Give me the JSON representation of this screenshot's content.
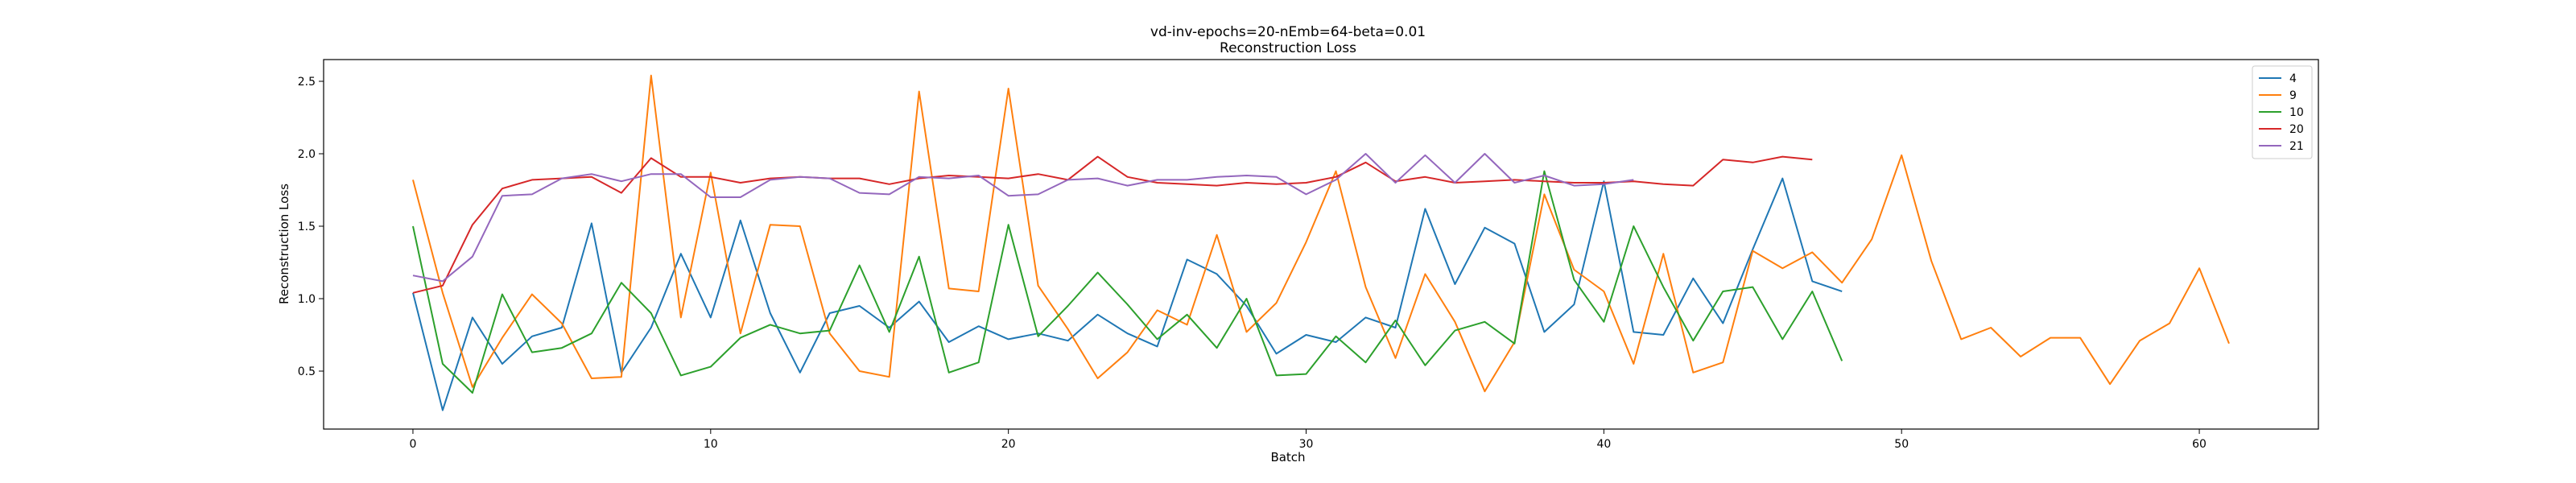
{
  "chart_data": {
    "type": "line",
    "title": "vd-inv-epochs=20-nEmb=64-beta=0.01",
    "subtitle": "Reconstruction Loss",
    "xlabel": "Batch",
    "ylabel": "Reconstruction Loss",
    "xlim": [
      -3,
      64
    ],
    "ylim": [
      0.1,
      2.65
    ],
    "xticks": [
      0,
      10,
      20,
      30,
      40,
      50,
      60
    ],
    "yticks": [
      0.5,
      1.0,
      1.5,
      2.0,
      2.5
    ],
    "ytick_labels": [
      "0.5",
      "1.0",
      "1.5",
      "2.0",
      "2.5"
    ],
    "grid": false,
    "legend_position": "top-right",
    "series": [
      {
        "name": "4",
        "color": "#1f77b4",
        "values": [
          1.04,
          0.23,
          0.87,
          0.55,
          0.74,
          0.8,
          1.52,
          0.49,
          0.8,
          1.31,
          0.87,
          1.54,
          0.9,
          0.49,
          0.9,
          0.95,
          0.8,
          0.98,
          0.7,
          0.81,
          0.72,
          0.76,
          0.71,
          0.89,
          0.76,
          0.67,
          1.27,
          1.17,
          0.95,
          0.62,
          0.75,
          0.7,
          0.87,
          0.8,
          1.62,
          1.1,
          1.49,
          1.38,
          0.77,
          0.96,
          1.81,
          0.77,
          0.75,
          1.14,
          0.83,
          1.34,
          1.83,
          1.12,
          1.05
        ]
      },
      {
        "name": "9",
        "color": "#ff7f0e",
        "values": [
          1.82,
          1.04,
          0.39,
          0.73,
          1.03,
          0.83,
          0.45,
          0.46,
          2.54,
          0.87,
          1.87,
          0.76,
          1.51,
          1.5,
          0.76,
          0.5,
          0.46,
          2.43,
          1.07,
          1.05,
          2.45,
          1.09,
          0.79,
          0.45,
          0.63,
          0.92,
          0.82,
          1.44,
          0.77,
          0.97,
          1.39,
          1.88,
          1.08,
          0.59,
          1.17,
          0.84,
          0.36,
          0.7,
          1.72,
          1.2,
          1.05,
          0.55,
          1.31,
          0.49,
          0.56,
          1.33,
          1.21,
          1.32,
          1.11,
          1.41,
          1.99,
          1.26,
          0.72,
          0.8,
          0.6,
          0.73,
          0.73,
          0.41,
          0.71,
          0.83,
          1.21,
          0.69
        ]
      },
      {
        "name": "10",
        "color": "#2ca02c",
        "values": [
          1.5,
          0.55,
          0.35,
          1.03,
          0.63,
          0.66,
          0.76,
          1.11,
          0.9,
          0.47,
          0.53,
          0.73,
          0.82,
          0.76,
          0.78,
          1.23,
          0.77,
          1.29,
          0.49,
          0.56,
          1.51,
          0.74,
          0.95,
          1.18,
          0.96,
          0.72,
          0.89,
          0.66,
          1.0,
          0.47,
          0.48,
          0.74,
          0.56,
          0.85,
          0.54,
          0.78,
          0.84,
          0.69,
          1.88,
          1.13,
          0.84,
          1.5,
          1.08,
          0.71,
          1.05,
          1.08,
          0.72,
          1.05,
          0.57
        ]
      },
      {
        "name": "20",
        "color": "#d62728",
        "values": [
          1.04,
          1.09,
          1.51,
          1.76,
          1.82,
          1.83,
          1.84,
          1.73,
          1.97,
          1.84,
          1.84,
          1.8,
          1.83,
          1.84,
          1.83,
          1.83,
          1.79,
          1.83,
          1.85,
          1.84,
          1.83,
          1.86,
          1.82,
          1.98,
          1.84,
          1.8,
          1.79,
          1.78,
          1.8,
          1.79,
          1.8,
          1.84,
          1.94,
          1.81,
          1.84,
          1.8,
          1.81,
          1.82,
          1.81,
          1.8,
          1.8,
          1.81,
          1.79,
          1.78,
          1.96,
          1.94,
          1.98,
          1.96
        ]
      },
      {
        "name": "21",
        "color": "#9467bd",
        "values": [
          1.16,
          1.12,
          1.29,
          1.71,
          1.72,
          1.83,
          1.86,
          1.81,
          1.86,
          1.86,
          1.7,
          1.7,
          1.82,
          1.84,
          1.83,
          1.73,
          1.72,
          1.84,
          1.83,
          1.85,
          1.71,
          1.72,
          1.82,
          1.83,
          1.78,
          1.82,
          1.82,
          1.84,
          1.85,
          1.84,
          1.72,
          1.82,
          2.0,
          1.8,
          1.99,
          1.8,
          2.0,
          1.8,
          1.85,
          1.78,
          1.79,
          1.82
        ]
      }
    ]
  }
}
